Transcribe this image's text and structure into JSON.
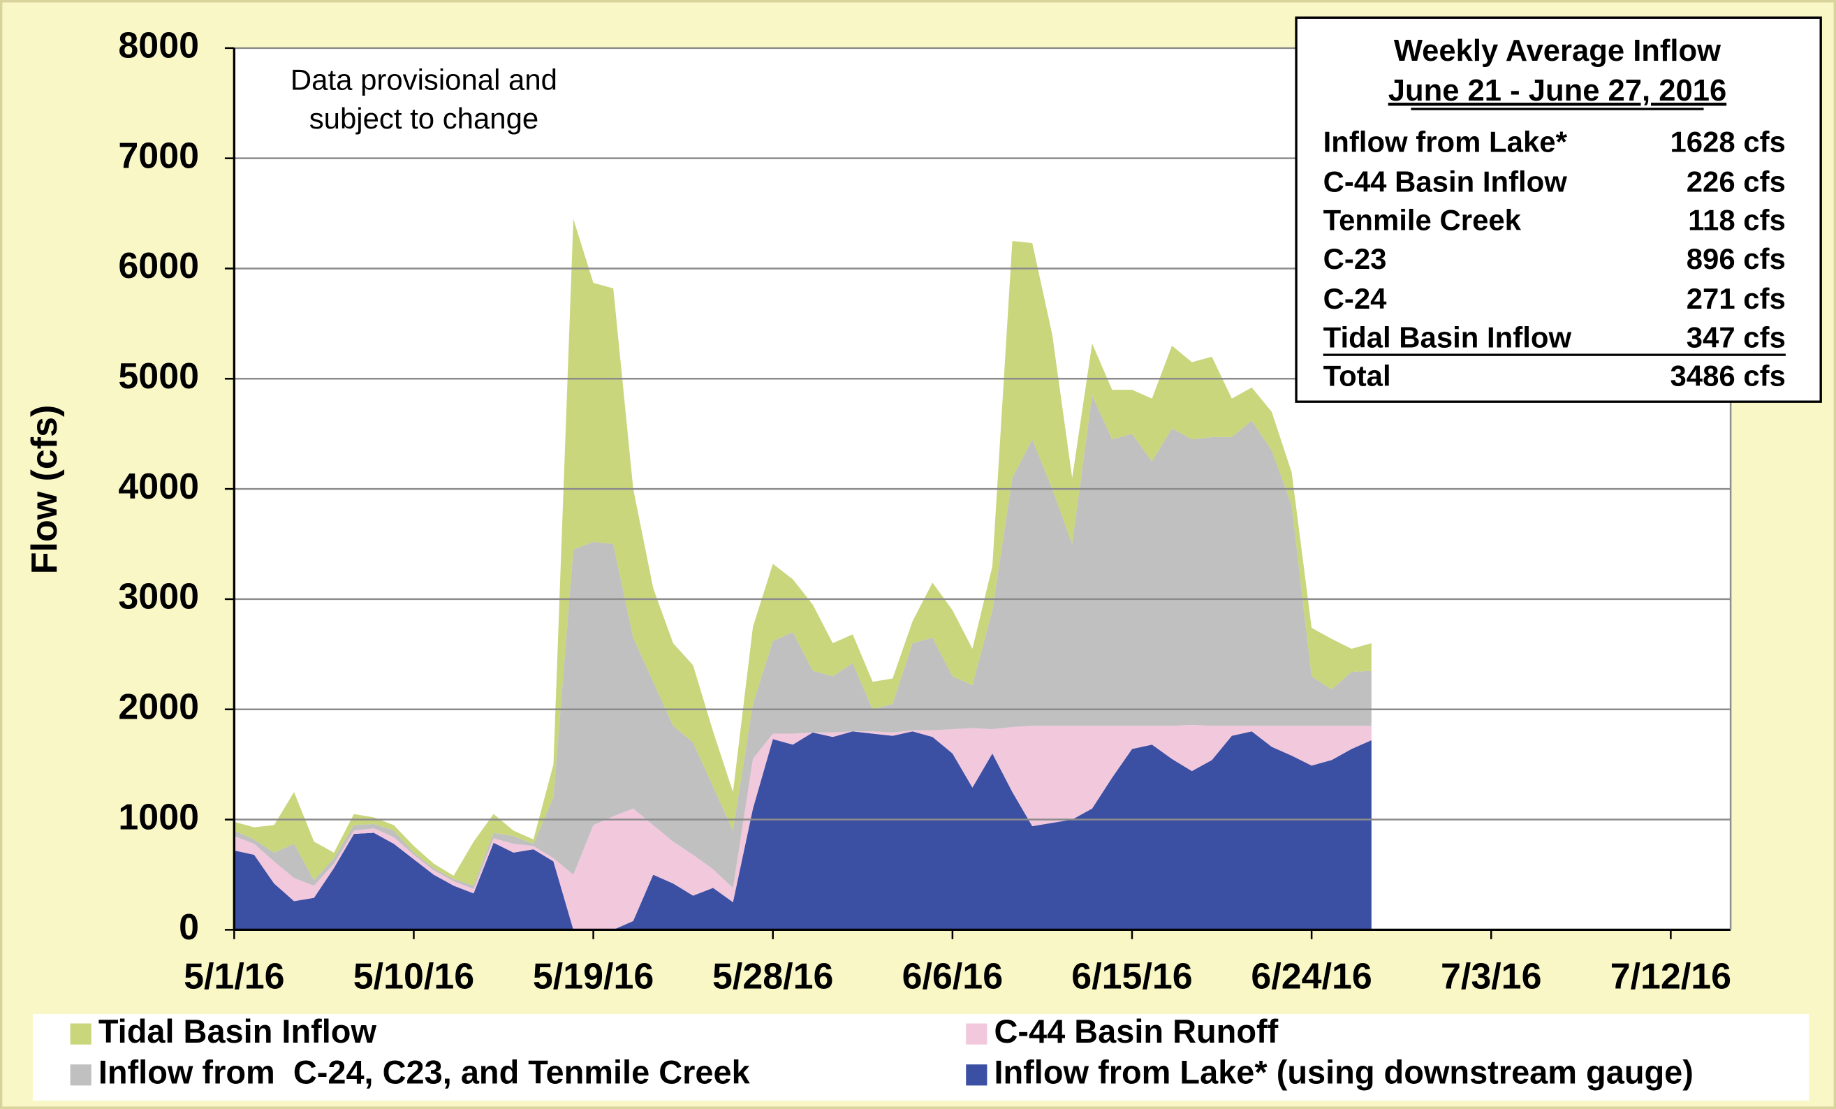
{
  "chart_data": {
    "type": "stacked_area",
    "y_label": "Flow (cfs)",
    "annotation": [
      "Data provisional and",
      "subject to change"
    ],
    "x": [
      "5/1/16",
      "5/2/16",
      "5/3/16",
      "5/4/16",
      "5/5/16",
      "5/6/16",
      "5/7/16",
      "5/8/16",
      "5/9/16",
      "5/10/16",
      "5/11/16",
      "5/12/16",
      "5/13/16",
      "5/14/16",
      "5/15/16",
      "5/16/16",
      "5/17/16",
      "5/18/16",
      "5/19/16",
      "5/20/16",
      "5/21/16",
      "5/22/16",
      "5/23/16",
      "5/24/16",
      "5/25/16",
      "5/26/16",
      "5/27/16",
      "5/28/16",
      "5/29/16",
      "5/30/16",
      "5/31/16",
      "6/1/16",
      "6/2/16",
      "6/3/16",
      "6/4/16",
      "6/5/16",
      "6/6/16",
      "6/7/16",
      "6/8/16",
      "6/9/16",
      "6/10/16",
      "6/11/16",
      "6/12/16",
      "6/13/16",
      "6/14/16",
      "6/15/16",
      "6/16/16",
      "6/17/16",
      "6/18/16",
      "6/19/16",
      "6/20/16",
      "6/21/16",
      "6/22/16",
      "6/23/16",
      "6/24/16",
      "6/25/16",
      "6/26/16",
      "6/27/16"
    ],
    "series": [
      {
        "name": "Inflow from Lake* (using downstream gauge)",
        "color": "#3b4fa3",
        "values": [
          720,
          680,
          420,
          260,
          290,
          560,
          870,
          880,
          780,
          640,
          500,
          400,
          330,
          790,
          700,
          730,
          620,
          0,
          0,
          0,
          80,
          500,
          420,
          310,
          380,
          250,
          1100,
          1730,
          1680,
          1790,
          1750,
          1800,
          1780,
          1760,
          1800,
          1750,
          1600,
          1290,
          1600,
          1250,
          940,
          970,
          1000,
          1100,
          1380,
          1640,
          1680,
          1550,
          1440,
          1540,
          1760,
          1800,
          1660,
          1580,
          1490,
          1540,
          1640,
          1720
        ]
      },
      {
        "name": "C-44 Basin Runoff",
        "color": "#f2c8dd",
        "values": [
          130,
          100,
          200,
          210,
          110,
          40,
          30,
          40,
          60,
          40,
          40,
          40,
          40,
          40,
          80,
          30,
          30,
          500,
          950,
          1030,
          1020,
          450,
          380,
          370,
          170,
          130,
          450,
          50,
          100,
          0,
          40,
          0,
          20,
          30,
          10,
          60,
          220,
          540,
          220,
          590,
          910,
          880,
          850,
          750,
          470,
          210,
          170,
          300,
          420,
          310,
          90,
          50,
          190,
          270,
          360,
          310,
          210,
          130
        ]
      },
      {
        "name": "Inflow from  C-24, C23, and Tenmile Creek",
        "color": "#c0c0c0",
        "values": [
          50,
          40,
          80,
          310,
          50,
          50,
          50,
          40,
          60,
          20,
          20,
          20,
          30,
          50,
          70,
          20,
          550,
          2950,
          2570,
          2470,
          1550,
          1300,
          1050,
          1020,
          750,
          520,
          500,
          840,
          920,
          560,
          510,
          620,
          200,
          260,
          790,
          840,
          480,
          390,
          1080,
          2260,
          2600,
          2150,
          1650,
          3000,
          2600,
          2650,
          2400,
          2700,
          2590,
          2620,
          2620,
          2770,
          2500,
          2000,
          450,
          330,
          490,
          500
        ]
      },
      {
        "name": "Tidal Basin Inflow",
        "color": "#c9d67c",
        "values": [
          80,
          110,
          250,
          470,
          350,
          50,
          100,
          60,
          50,
          60,
          40,
          30,
          400,
          170,
          50,
          40,
          300,
          3000,
          2350,
          2320,
          1350,
          850,
          750,
          700,
          500,
          350,
          700,
          700,
          480,
          600,
          300,
          260,
          250,
          230,
          200,
          500,
          600,
          330,
          400,
          2150,
          1780,
          1400,
          600,
          470,
          450,
          400,
          570,
          750,
          700,
          730,
          350,
          300,
          350,
          300,
          440,
          460,
          210,
          250
        ]
      }
    ],
    "xlim": [
      "5/1/16",
      "7/15/16"
    ],
    "xticks": [
      "5/1/16",
      "5/10/16",
      "5/19/16",
      "5/28/16",
      "6/6/16",
      "6/15/16",
      "6/24/16",
      "7/3/16",
      "7/12/16"
    ],
    "ylim": [
      0,
      8000
    ],
    "yticks": [
      0,
      1000,
      2000,
      3000,
      4000,
      5000,
      6000,
      7000,
      8000
    ],
    "grid": true,
    "legend": "bottom",
    "info_box": {
      "title": "Weekly Average Inflow",
      "subtitle": "June 21 - June 27, 2016",
      "rows": [
        [
          "Inflow from Lake*",
          "1628 cfs"
        ],
        [
          "C-44 Basin Inflow",
          "226 cfs"
        ],
        [
          "Tenmile Creek",
          "118 cfs"
        ],
        [
          "C-23",
          "896 cfs"
        ],
        [
          "C-24",
          "271 cfs"
        ],
        [
          "Tidal Basin Inflow",
          "347 cfs"
        ],
        [
          "Total",
          "3486 cfs"
        ]
      ]
    }
  }
}
